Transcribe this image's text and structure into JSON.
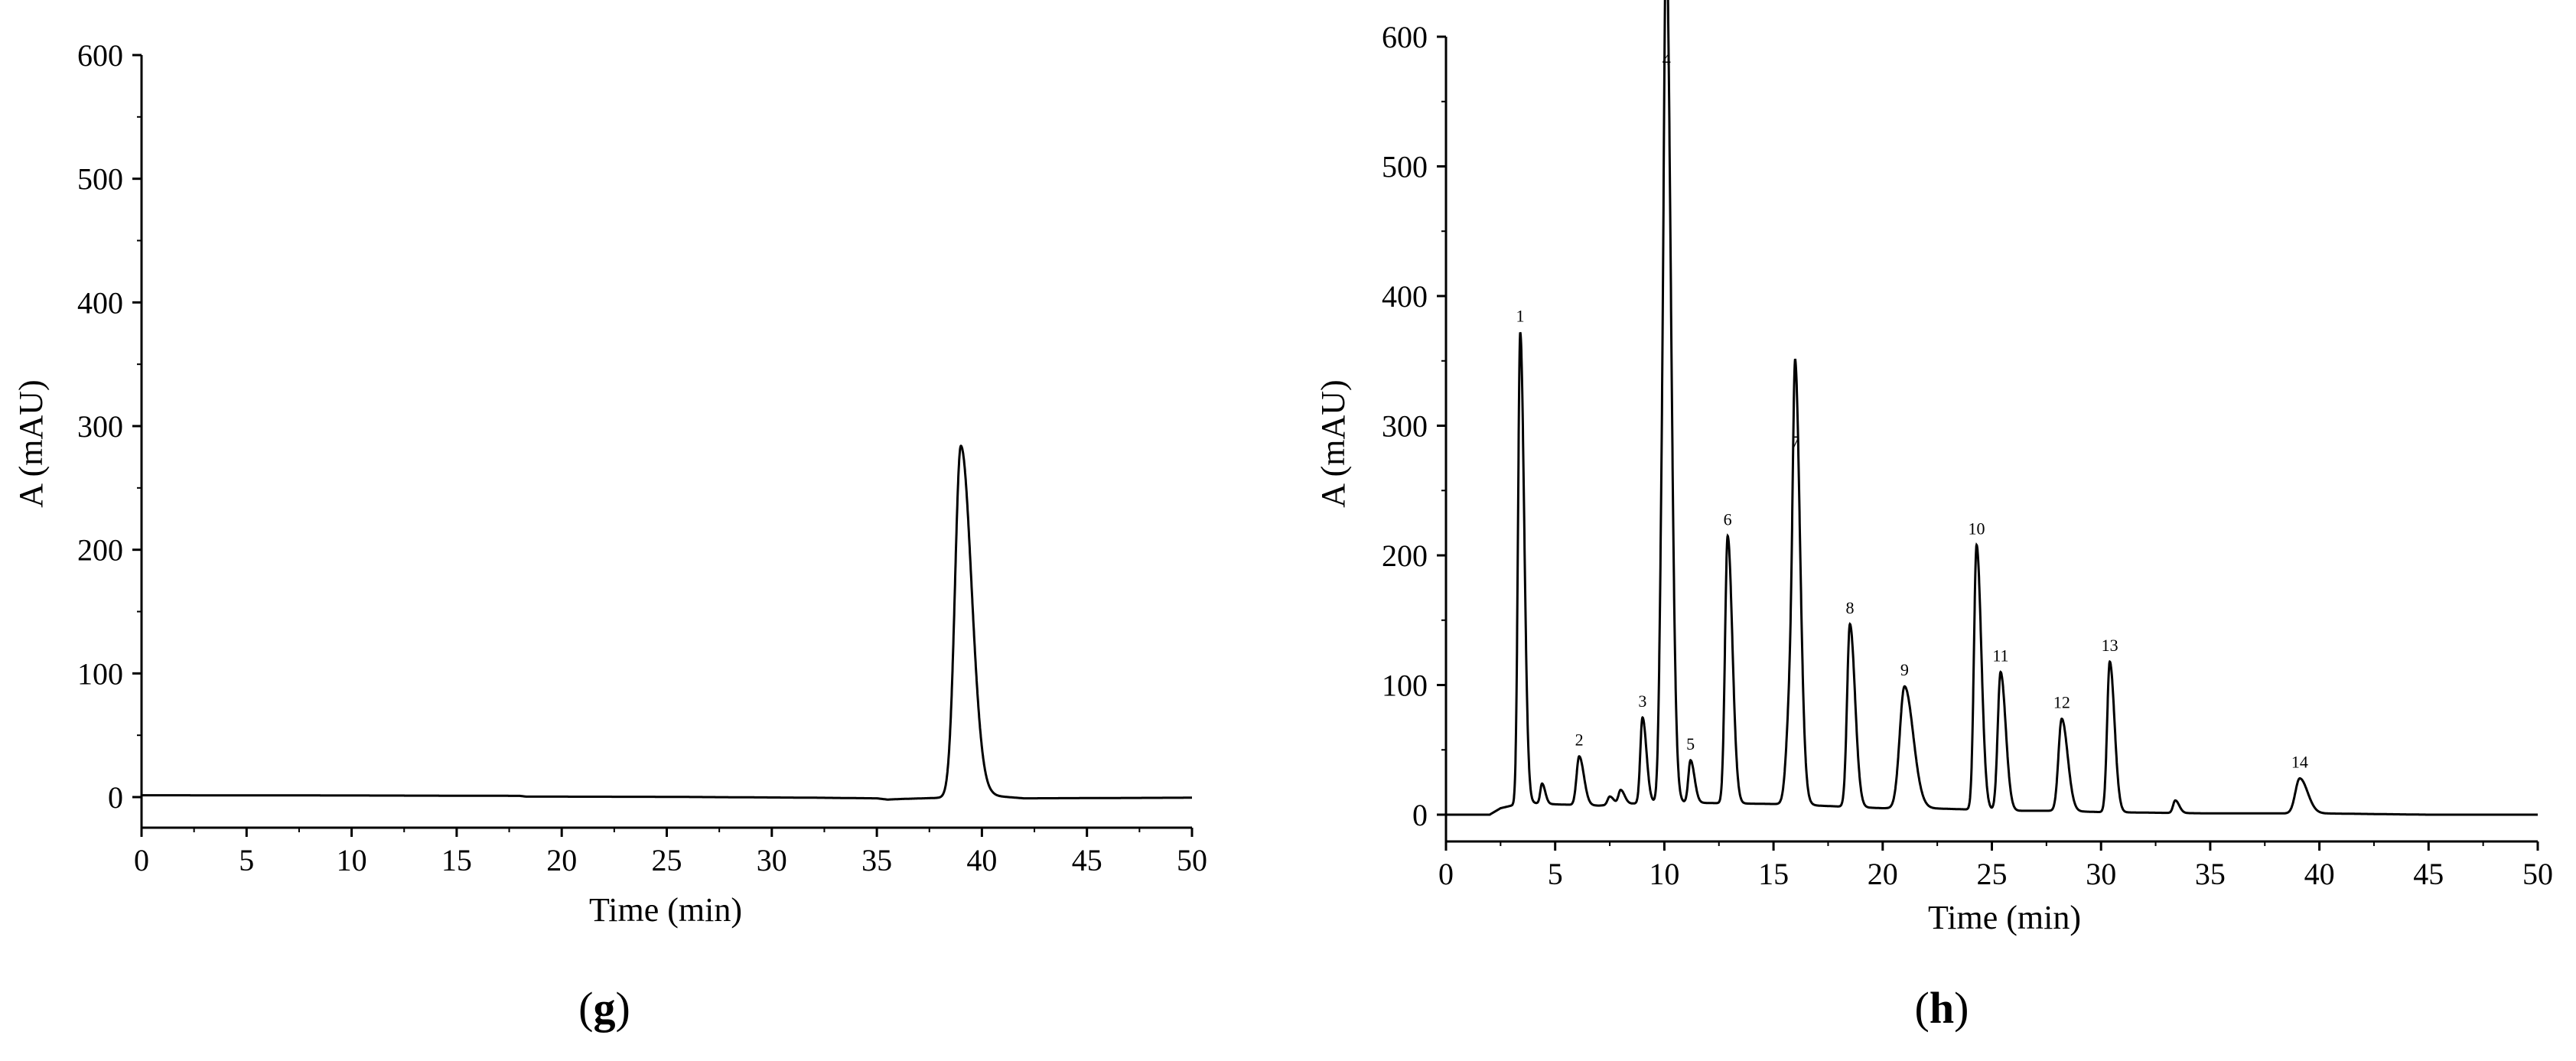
{
  "chart_data": [
    {
      "type": "line",
      "panel_label": {
        "open": "(",
        "letter": "g",
        "close": ")"
      },
      "xlabel": "Time (min)",
      "ylabel": "A (mAU)",
      "xlim": [
        0,
        50
      ],
      "ylim": [
        -25,
        600
      ],
      "x_ticks": [
        0,
        5,
        10,
        15,
        20,
        25,
        30,
        35,
        40,
        45,
        50
      ],
      "y_ticks": [
        0,
        100,
        200,
        300,
        400,
        500,
        600
      ],
      "grid": false,
      "baseline": [
        [
          0,
          1.5
        ],
        [
          10,
          1.3
        ],
        [
          18,
          1.0
        ],
        [
          18.3,
          0.4
        ],
        [
          25,
          0.2
        ],
        [
          32,
          -0.5
        ],
        [
          35,
          -1
        ],
        [
          35.5,
          -2
        ],
        [
          36.2,
          -1.5
        ],
        [
          38.2,
          -0.5
        ]
      ],
      "peaks": [
        {
          "label": "",
          "x": 39.0,
          "y": 284,
          "width": 0.28
        }
      ],
      "tail": [
        [
          40.5,
          1
        ],
        [
          42,
          -1
        ],
        [
          50,
          -0.5
        ]
      ]
    },
    {
      "type": "line",
      "panel_label": {
        "open": "(",
        "letter": "h",
        "close": ")"
      },
      "xlabel": "Time (min)",
      "ylabel": "A (mAU)",
      "xlim": [
        0,
        50
      ],
      "ylim": [
        -20,
        600
      ],
      "x_ticks": [
        0,
        5,
        10,
        15,
        20,
        25,
        30,
        35,
        40,
        45,
        50
      ],
      "y_ticks": [
        0,
        100,
        200,
        300,
        400,
        500,
        600
      ],
      "grid": false,
      "baseline": [
        [
          0,
          0
        ],
        [
          2,
          0
        ],
        [
          2.5,
          5
        ],
        [
          3,
          7
        ],
        [
          4,
          9
        ],
        [
          5,
          8
        ],
        [
          7,
          7
        ],
        [
          10,
          10
        ],
        [
          12,
          9
        ],
        [
          16,
          8
        ],
        [
          17,
          7
        ],
        [
          20,
          5
        ],
        [
          22,
          5
        ],
        [
          24,
          4
        ],
        [
          26,
          3
        ],
        [
          28,
          3
        ],
        [
          30,
          2
        ],
        [
          35,
          1
        ],
        [
          40,
          1
        ],
        [
          45,
          0
        ],
        [
          50,
          0
        ]
      ],
      "peaks": [
        {
          "label": "1",
          "x": 3.4,
          "y": 372,
          "width": 0.1
        },
        {
          "label": "",
          "x": 4.4,
          "y": 24,
          "width": 0.08
        },
        {
          "label": "2",
          "x": 6.1,
          "y": 45,
          "width": 0.12
        },
        {
          "label": "",
          "x": 7.5,
          "y": 14,
          "width": 0.1
        },
        {
          "label": "",
          "x": 8.0,
          "y": 19,
          "width": 0.1
        },
        {
          "label": "3",
          "x": 9.0,
          "y": 75,
          "width": 0.1
        },
        {
          "label": "",
          "x": 9.9,
          "y": 190,
          "width": 0.12
        },
        {
          "label": "4",
          "x": 10.1,
          "y": 570,
          "width": 0.12
        },
        {
          "label": "5",
          "x": 11.2,
          "y": 42,
          "width": 0.1
        },
        {
          "label": "6",
          "x": 12.9,
          "y": 215,
          "width": 0.12
        },
        {
          "label": "",
          "x": 15.8,
          "y": 100,
          "width": 0.18
        },
        {
          "label": "7",
          "x": 16.0,
          "y": 275,
          "width": 0.12
        },
        {
          "label": "8",
          "x": 18.5,
          "y": 147,
          "width": 0.13
        },
        {
          "label": "9",
          "x": 21.0,
          "y": 99,
          "width": 0.22
        },
        {
          "label": "10",
          "x": 24.3,
          "y": 208,
          "width": 0.12
        },
        {
          "label": "11",
          "x": 25.4,
          "y": 110,
          "width": 0.13
        },
        {
          "label": "12",
          "x": 28.2,
          "y": 74,
          "width": 0.15
        },
        {
          "label": "13",
          "x": 30.4,
          "y": 118,
          "width": 0.12
        },
        {
          "label": "",
          "x": 33.4,
          "y": 11,
          "width": 0.1
        },
        {
          "label": "14",
          "x": 39.1,
          "y": 28,
          "width": 0.2
        }
      ]
    }
  ],
  "colors": {
    "line": "#000000",
    "axis": "#000000",
    "background": "#ffffff"
  }
}
